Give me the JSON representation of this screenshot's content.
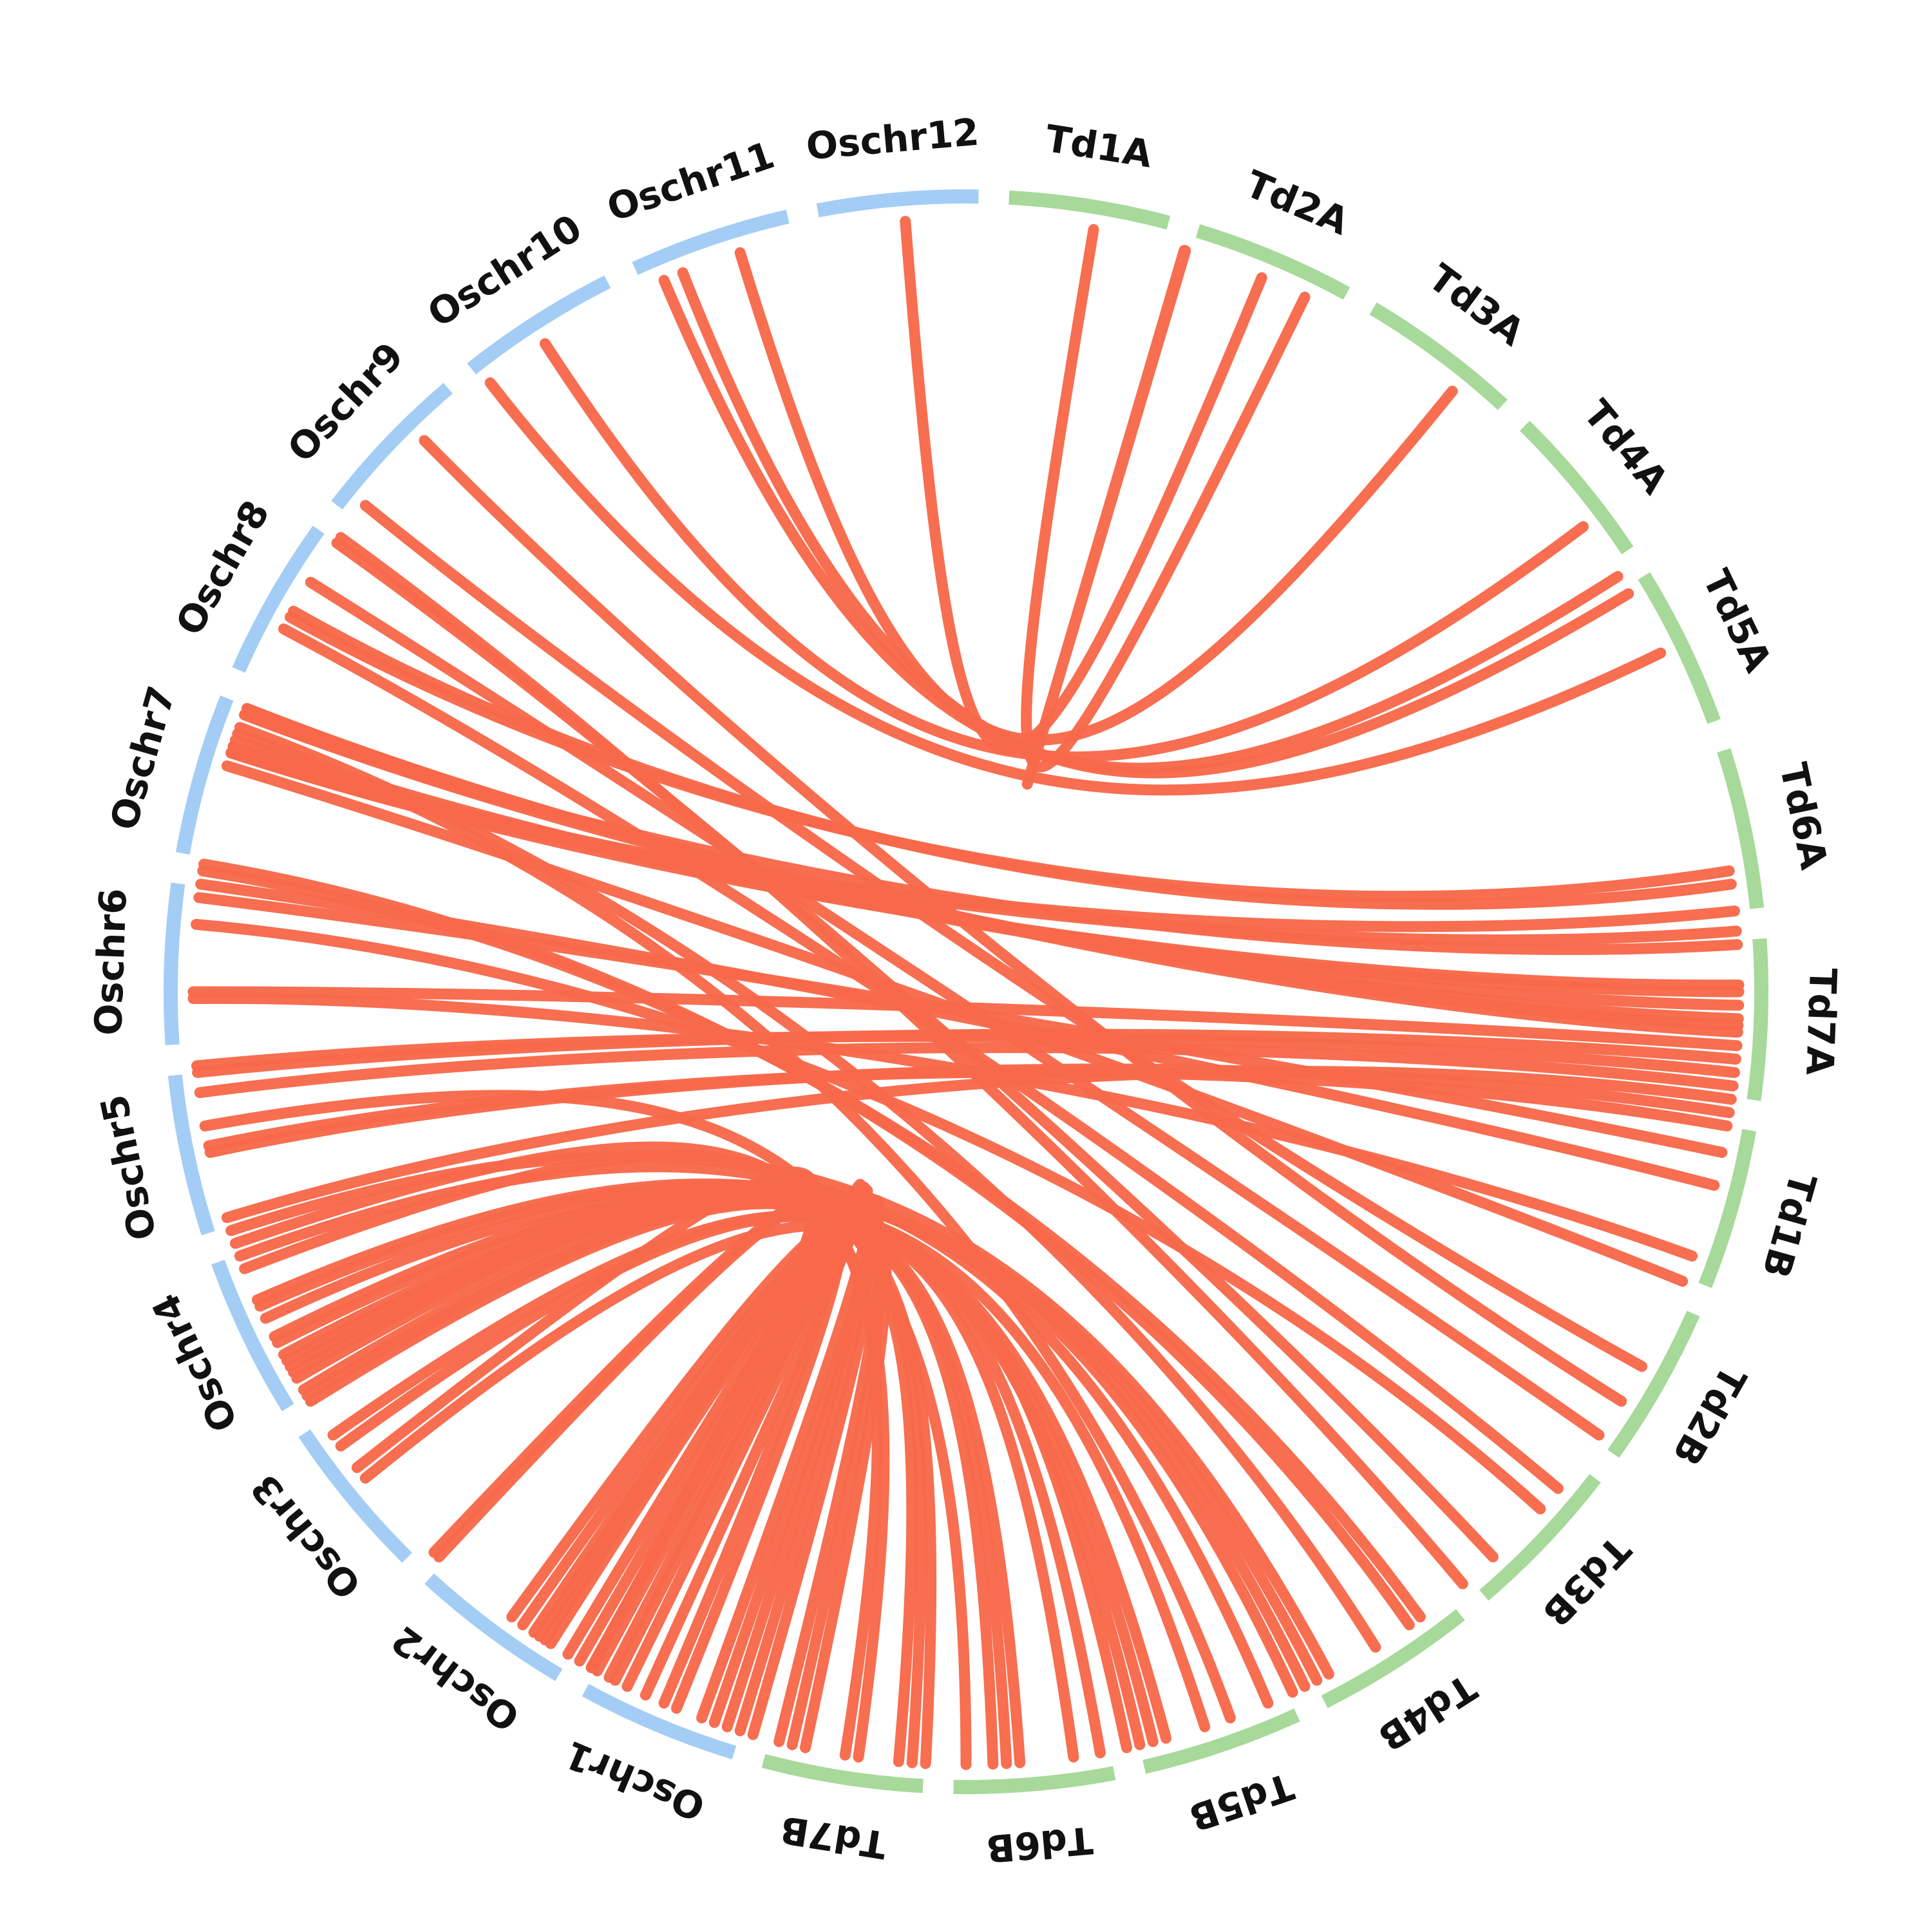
{
  "colors": {
    "rice": "#a3cdf5",
    "wheat": "#a7d99a",
    "link": "#f7694a",
    "label": "#111111"
  },
  "chromosomes": [
    {
      "name": "Td1A",
      "genome": "wheat"
    },
    {
      "name": "Td2A",
      "genome": "wheat"
    },
    {
      "name": "Td3A",
      "genome": "wheat"
    },
    {
      "name": "Td4A",
      "genome": "wheat"
    },
    {
      "name": "Td5A",
      "genome": "wheat"
    },
    {
      "name": "Td6A",
      "genome": "wheat"
    },
    {
      "name": "Td7A",
      "genome": "wheat"
    },
    {
      "name": "Td1B",
      "genome": "wheat"
    },
    {
      "name": "Td2B",
      "genome": "wheat"
    },
    {
      "name": "Td3B",
      "genome": "wheat"
    },
    {
      "name": "Td4B",
      "genome": "wheat"
    },
    {
      "name": "Td5B",
      "genome": "wheat"
    },
    {
      "name": "Td6B",
      "genome": "wheat"
    },
    {
      "name": "Td7B",
      "genome": "wheat"
    },
    {
      "name": "Oschr1",
      "genome": "rice"
    },
    {
      "name": "Oschr2",
      "genome": "rice"
    },
    {
      "name": "Oschr3",
      "genome": "rice"
    },
    {
      "name": "Oschr4",
      "genome": "rice"
    },
    {
      "name": "Oschr5",
      "genome": "rice"
    },
    {
      "name": "Oschr6",
      "genome": "rice"
    },
    {
      "name": "Oschr7",
      "genome": "rice"
    },
    {
      "name": "Oschr8",
      "genome": "rice"
    },
    {
      "name": "Oschr9",
      "genome": "rice"
    },
    {
      "name": "Oschr10",
      "genome": "rice"
    },
    {
      "name": "Oschr11",
      "genome": "rice"
    },
    {
      "name": "Oschr12",
      "genome": "rice"
    }
  ],
  "links": [
    [
      20.5,
      353.5
    ],
    [
      24.0,
      7.5
    ],
    [
      14.5,
      14.4
    ],
    [
      37.0,
      341.0
    ],
    [
      51.0,
      325.0
    ],
    [
      55.5,
      335.0
    ],
    [
      57.0,
      336.5
    ],
    [
      62.0,
      320.0
    ],
    [
      79.0,
      297.0
    ],
    [
      80.0,
      297.5
    ],
    [
      82.0,
      286.0
    ],
    [
      83.5,
      286.5
    ],
    [
      84.5,
      289.0
    ],
    [
      87.5,
      286.0
    ],
    [
      88.0,
      286.5
    ],
    [
      89.0,
      287.0
    ],
    [
      90.0,
      289.0
    ],
    [
      90.5,
      289.5
    ],
    [
      91.0,
      289.5
    ],
    [
      92.0,
      268.0
    ],
    [
      93.0,
      262.0
    ],
    [
      94.0,
      262.5
    ],
    [
      95.0,
      260.5
    ],
    [
      96.0,
      251.0
    ],
    [
      97.0,
      256.0
    ],
    [
      98.0,
      256.5
    ],
    [
      102.5,
      276.0
    ],
    [
      110.0,
      285.0
    ],
    [
      117.0,
      307.0
    ],
    [
      120.0,
      313.5
    ],
    [
      128.0,
      296.0
    ],
    [
      130.0,
      273.0
    ],
    [
      142.0,
      277.0
    ],
    [
      143.0,
      277.5
    ],
    [
      150.0,
      250.0
    ],
    [
      151.0,
      243.0
    ],
    [
      152.0,
      244.0
    ],
    [
      153.0,
      244.5
    ],
    [
      155.0,
      248.0
    ],
    [
      160.0,
      239.0
    ],
    [
      163.0,
      240.0
    ],
    [
      164.0,
      241.0
    ],
    [
      165.0,
      241.5
    ],
    [
      174.0,
      236.0
    ],
    [
      175.0,
      236.5
    ],
    [
      176.0,
      237.0
    ],
    [
      178.0,
      258.0
    ],
    [
      181.0,
      238.0
    ],
    [
      182.0,
      238.5
    ],
    [
      183.0,
      239.5
    ],
    [
      186.0,
      249.0
    ],
    [
      187.0,
      247.0
    ],
    [
      190.0,
      213.0
    ],
    [
      191.0,
      214.0
    ],
    [
      192.0,
      212.0
    ],
    [
      194.0,
      210.5
    ],
    [
      195.0,
      211.0
    ],
    [
      196.0,
      211.5
    ],
    [
      197.0,
      205.0
    ],
    [
      198.0,
      209.0
    ],
    [
      200.0,
      221.0
    ],
    [
      201.0,
      221.5
    ],
    [
      202.5,
      206.5
    ],
    [
      204.0,
      207.0
    ],
    [
      205.5,
      208.0
    ],
    [
      207.0,
      230.0
    ],
    [
      170.0,
      232.0
    ],
    [
      168.0,
      233.0
    ],
    [
      166.0,
      229.0
    ],
    [
      108.0,
      267.5
    ],
    [
      100.0,
      275.0
    ],
    [
      123.0,
      300.0
    ],
    [
      135.0,
      303.5
    ],
    [
      138.0,
      304.0
    ],
    [
      146.0,
      288.0
    ],
    [
      158.0,
      287.5
    ]
  ]
}
